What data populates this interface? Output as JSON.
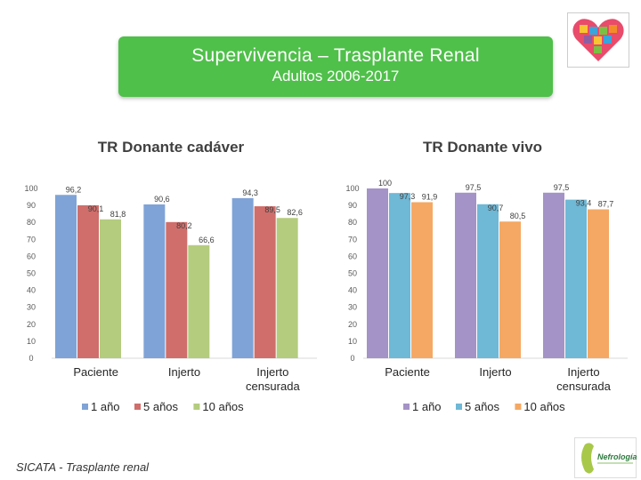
{
  "header": {
    "title": "Supervivencia – Trasplante Renal",
    "subtitle": "Adultos 2006-2017"
  },
  "source": "SICATA - Trasplante renal",
  "logo_text": "Nefrología",
  "colors": {
    "banner": "#4fc04a",
    "series_1": "#7fa3d6",
    "series_2": "#cf6e6b",
    "series_3": "#b4cc7e",
    "series_1_vivo": "#a493c6",
    "series_2_vivo": "#6fb8d6",
    "series_3_vivo": "#f5a863"
  },
  "chart_data": [
    {
      "type": "bar",
      "title": "TR Donante cadáver",
      "categories": [
        "Paciente",
        "Injerto",
        "Injerto censurada"
      ],
      "series": [
        {
          "name": "1 año",
          "values": [
            96.2,
            90.6,
            94.3
          ]
        },
        {
          "name": "5 años",
          "values": [
            90.1,
            80.2,
            89.5
          ]
        },
        {
          "name": "10 años",
          "values": [
            81.8,
            66.6,
            82.6
          ]
        }
      ],
      "value_labels": [
        [
          "96,2",
          "90,6",
          "94,3"
        ],
        [
          "90,1",
          "80,2",
          "89,5"
        ],
        [
          "81,8",
          "66,6",
          "82,6"
        ]
      ],
      "yticks": [
        "0",
        "10",
        "20",
        "30",
        "40",
        "50",
        "60",
        "70",
        "80",
        "90",
        "100"
      ],
      "ylim": [
        0,
        100
      ],
      "legend": "bottom"
    },
    {
      "type": "bar",
      "title": "TR Donante vivo",
      "categories": [
        "Paciente",
        "Injerto",
        "Injerto censurada"
      ],
      "series": [
        {
          "name": "1 año",
          "values": [
            100,
            97.5,
            97.5
          ]
        },
        {
          "name": "5 años",
          "values": [
            97.3,
            90.7,
            93.4
          ]
        },
        {
          "name": "10 años",
          "values": [
            91.9,
            80.5,
            87.7
          ]
        }
      ],
      "value_labels": [
        [
          "100",
          "97,5",
          "97,5"
        ],
        [
          "97,3",
          "90,7",
          "93,4"
        ],
        [
          "91,9",
          "80,5",
          "87,7"
        ]
      ],
      "yticks": [
        "0",
        "10",
        "20",
        "30",
        "40",
        "50",
        "60",
        "70",
        "80",
        "90",
        "100"
      ],
      "ylim": [
        0,
        100
      ],
      "legend": "bottom"
    }
  ]
}
